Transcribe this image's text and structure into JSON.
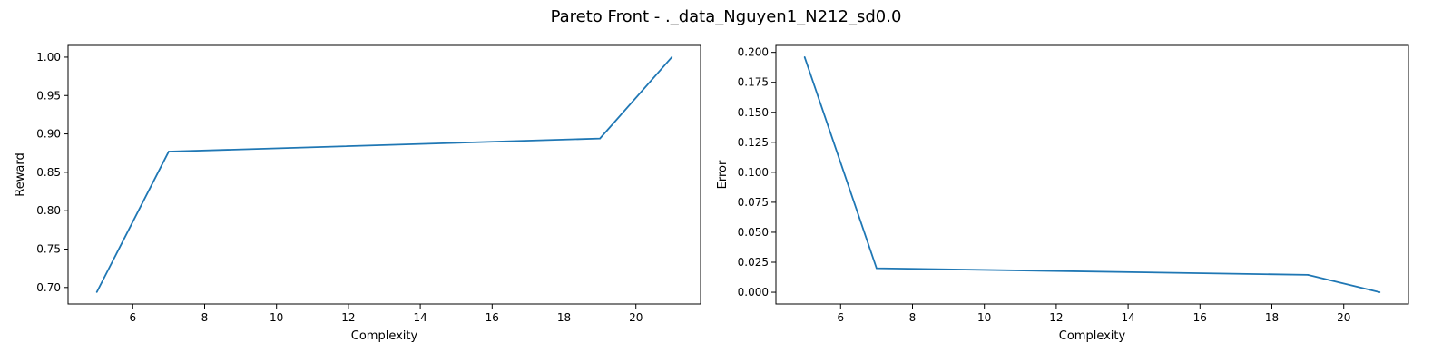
{
  "figure": {
    "title": "Pareto Front - ._data_Nguyen1_N212_sd0.0",
    "line_color": "#1f77b4"
  },
  "chart_data": [
    {
      "type": "line",
      "xlabel": "Complexity",
      "ylabel": "Reward",
      "xlim": [
        4.2,
        21.8
      ],
      "ylim": [
        0.6785,
        1.0153
      ],
      "xticks": [
        6,
        8,
        10,
        12,
        14,
        16,
        18,
        20
      ],
      "xtick_labels": [
        "6",
        "8",
        "10",
        "12",
        "14",
        "16",
        "18",
        "20"
      ],
      "yticks": [
        0.7,
        0.75,
        0.8,
        0.85,
        0.9,
        0.95,
        1.0
      ],
      "ytick_labels": [
        "0.70",
        "0.75",
        "0.80",
        "0.85",
        "0.90",
        "0.95",
        "1.00"
      ],
      "grid": false,
      "series": [
        {
          "x": [
            5,
            7,
            19,
            21
          ],
          "y": [
            0.694,
            0.877,
            0.894,
            1.0
          ]
        }
      ]
    },
    {
      "type": "line",
      "xlabel": "Complexity",
      "ylabel": "Error",
      "xlim": [
        4.2,
        21.8
      ],
      "ylim": [
        -0.0098,
        0.2058
      ],
      "xticks": [
        6,
        8,
        10,
        12,
        14,
        16,
        18,
        20
      ],
      "xtick_labels": [
        "6",
        "8",
        "10",
        "12",
        "14",
        "16",
        "18",
        "20"
      ],
      "yticks": [
        0.0,
        0.025,
        0.05,
        0.075,
        0.1,
        0.125,
        0.15,
        0.175,
        0.2
      ],
      "ytick_labels": [
        "0.000",
        "0.025",
        "0.050",
        "0.075",
        "0.100",
        "0.125",
        "0.150",
        "0.175",
        "0.200"
      ],
      "grid": false,
      "series": [
        {
          "x": [
            5,
            7,
            19,
            21
          ],
          "y": [
            0.196,
            0.02,
            0.0145,
            0.0
          ]
        }
      ]
    }
  ]
}
